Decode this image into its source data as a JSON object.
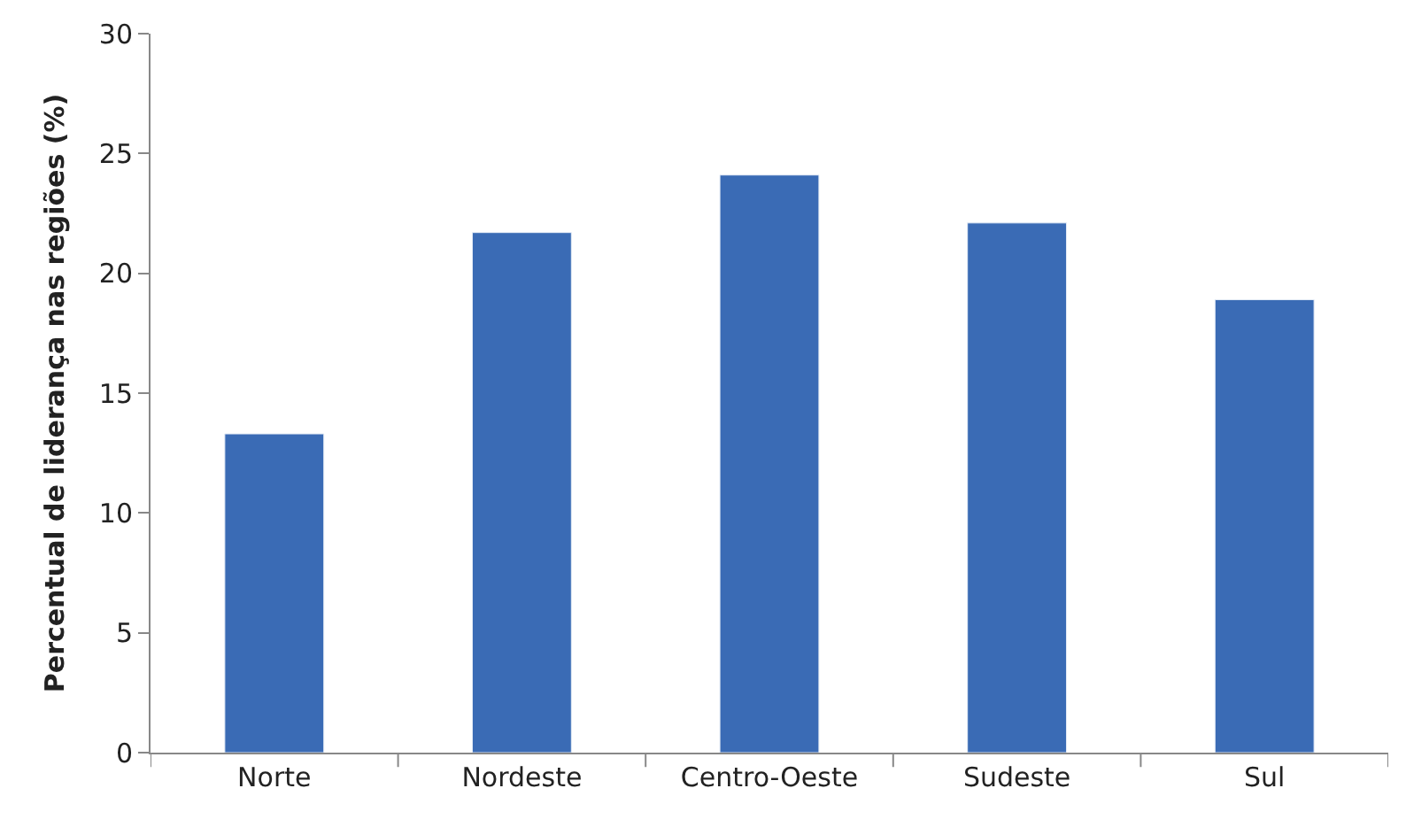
{
  "chart_data": {
    "type": "bar",
    "ylabel": "Percentual de liderança nas regiões (%)",
    "categories": [
      "Norte",
      "Nordeste",
      "Centro-Oeste",
      "Sudeste",
      "Sul"
    ],
    "values": [
      13.3,
      21.7,
      24.1,
      22.1,
      18.9
    ],
    "color": "#3a6bb5",
    "ylim": [
      0,
      30
    ],
    "yticks": [
      0,
      5,
      10,
      15,
      20,
      25,
      30
    ]
  }
}
